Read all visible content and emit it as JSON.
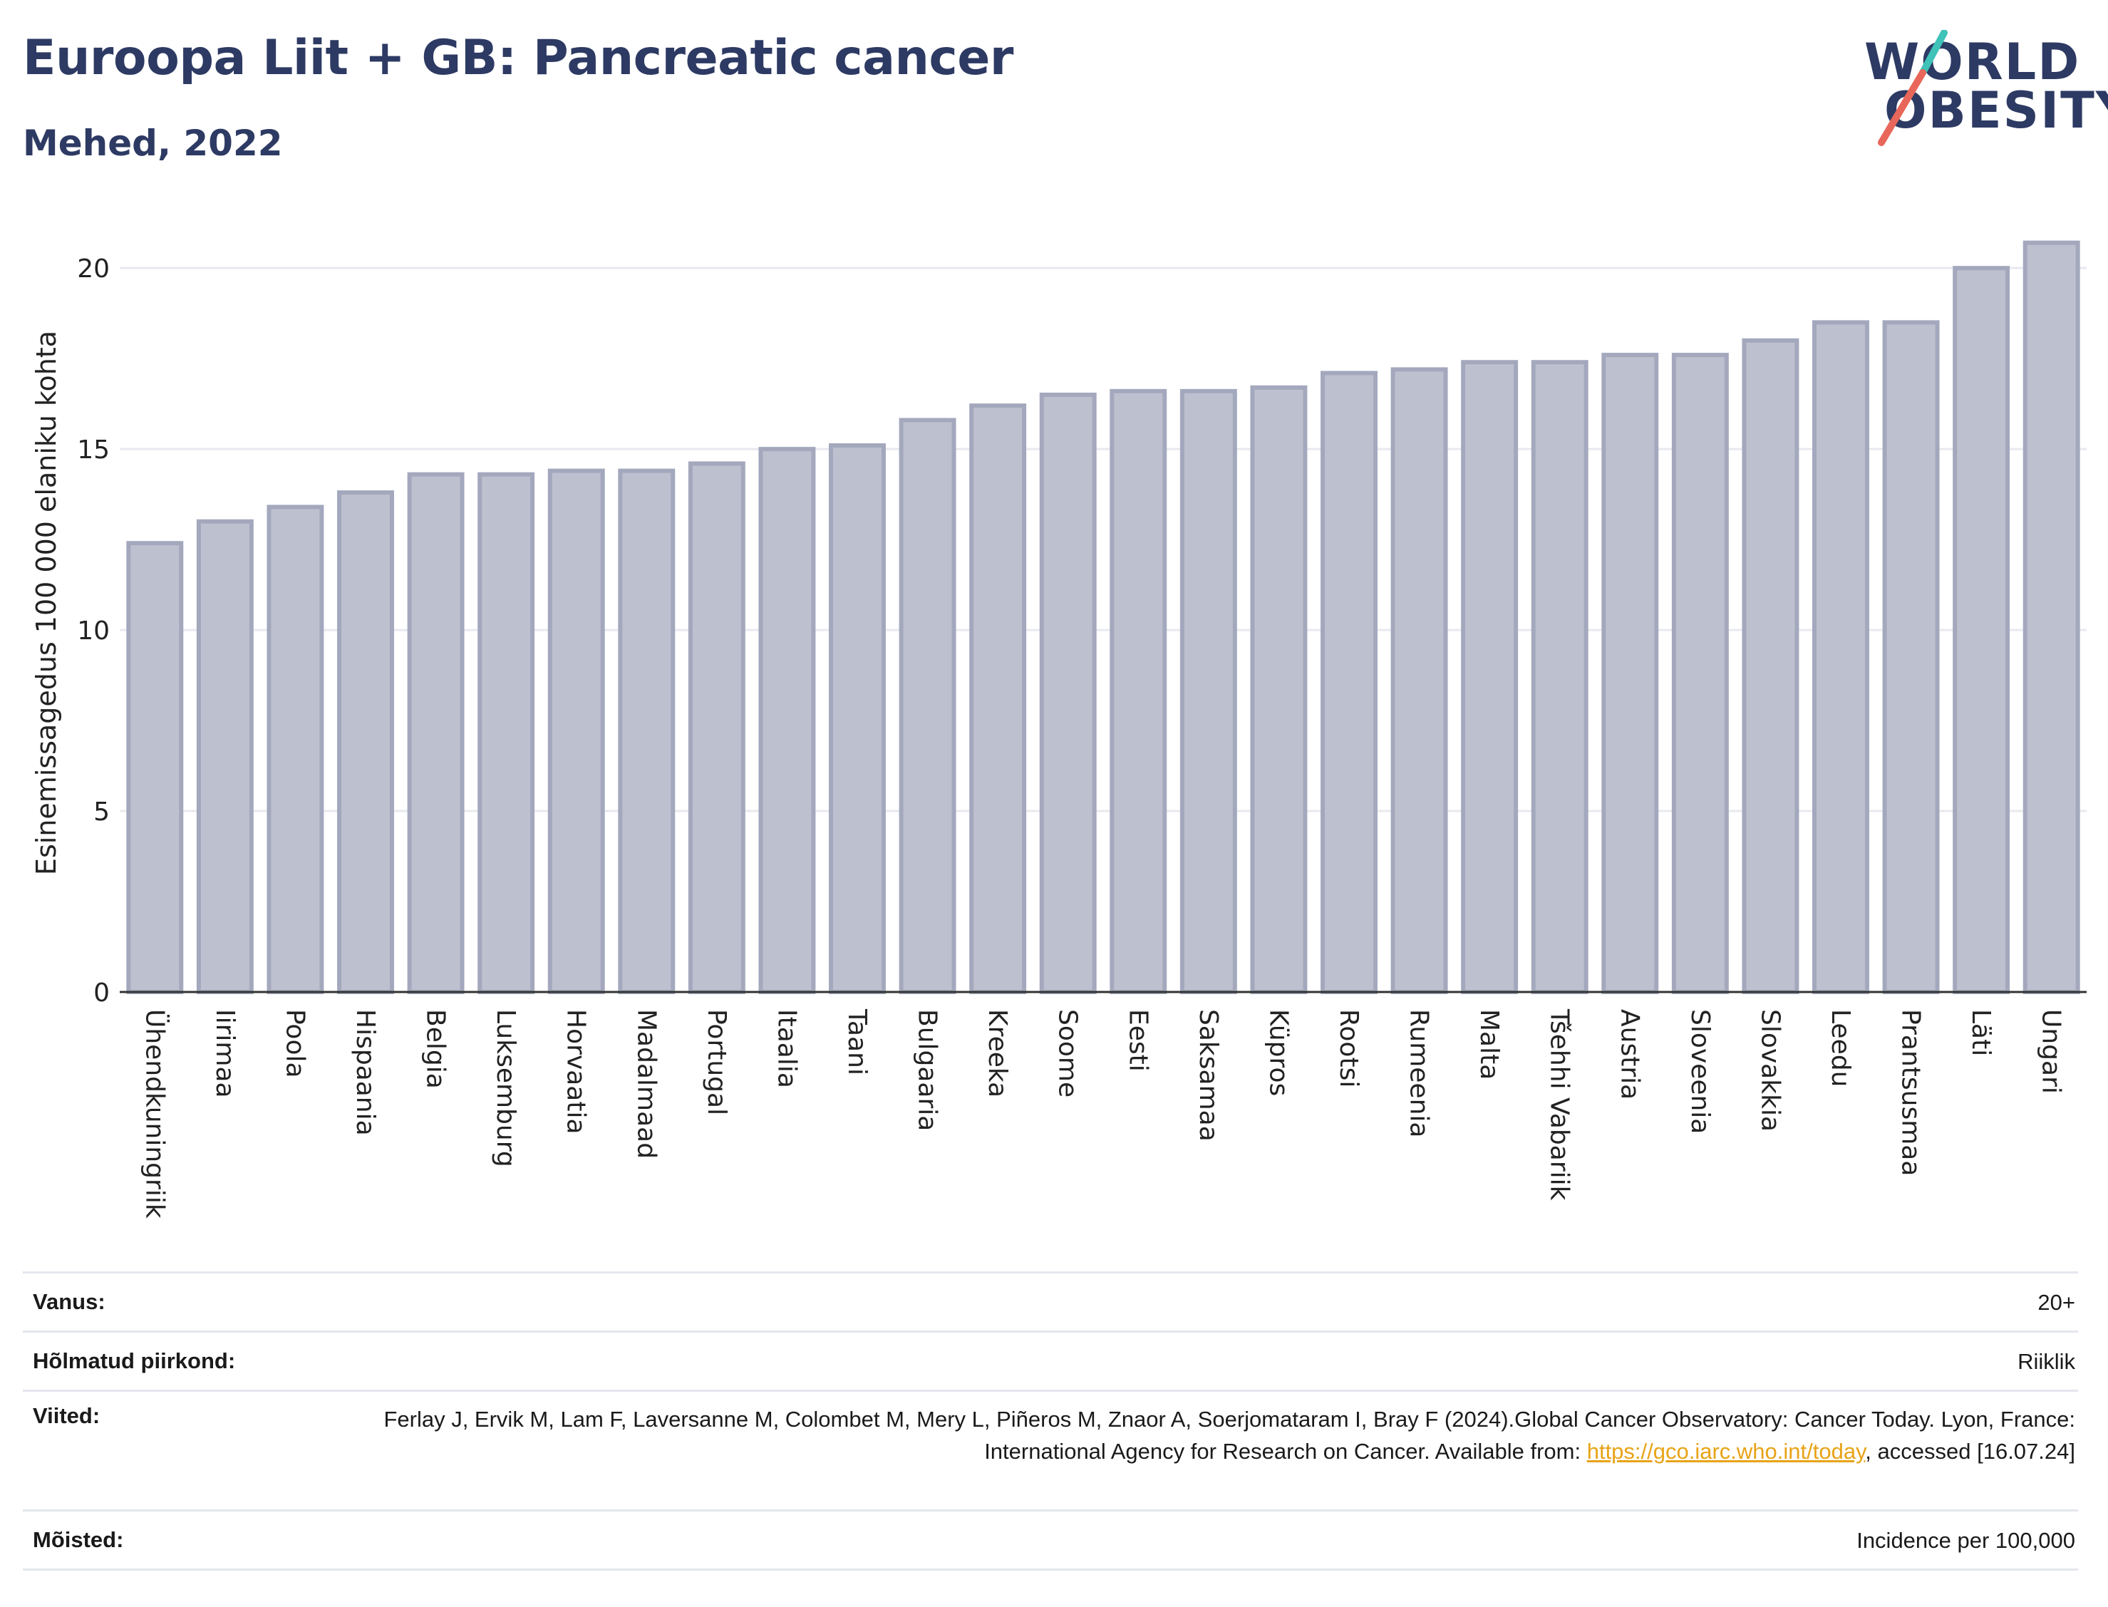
{
  "title": "Euroopa Liit + GB: Pancreatic cancer",
  "subtitle": "Mehed, 2022",
  "logo": {
    "line1": "WORLD",
    "line2": "OBESITY"
  },
  "colors": {
    "bar_fill": "#bdc0ce",
    "bar_stroke": "#a3a8bd",
    "title": "#2d3a63",
    "grid": "#e8e9ef",
    "link": "#e8a317",
    "logo_teal": "#3fc2b8",
    "logo_coral": "#e8675a"
  },
  "chart_data": {
    "type": "bar",
    "ylabel": "Esinemissagedus 100 000 elaniku kohta",
    "ylim": [
      0,
      21.5
    ],
    "yticks": [
      0,
      5,
      10,
      15,
      20
    ],
    "grid": true,
    "categories": [
      "Ühendkuningriik",
      "Iirimaa",
      "Poola",
      "Hispaania",
      "Belgia",
      "Luksemburg",
      "Horvaatia",
      "Madalmaad",
      "Portugal",
      "Itaalia",
      "Taani",
      "Bulgaaria",
      "Kreeka",
      "Soome",
      "Eesti",
      "Saksamaa",
      "Küpros",
      "Rootsi",
      "Rumeenia",
      "Malta",
      "Tšehhi Vabariik",
      "Austria",
      "Sloveenia",
      "Slovakkia",
      "Leedu",
      "Prantsusmaa",
      "Läti",
      "Ungari"
    ],
    "values": [
      12.4,
      13.0,
      13.4,
      13.8,
      14.3,
      14.3,
      14.4,
      14.4,
      14.6,
      15.0,
      15.1,
      15.8,
      16.2,
      16.5,
      16.6,
      16.6,
      16.7,
      17.1,
      17.2,
      17.4,
      17.4,
      17.6,
      17.6,
      18.0,
      18.5,
      18.5,
      20.0,
      20.7
    ]
  },
  "info": {
    "age_label": "Vanus:",
    "age_value": "20+",
    "region_label": "Hõlmatud piirkond:",
    "region_value": "Riiklik",
    "refs_label": "Viited:",
    "refs_text_1": "Ferlay J, Ervik M, Lam F, Laversanne M, Colombet M, Mery L, Piñeros M, Znaor A, Soerjomataram I, Bray F (2024).Global Cancer Observatory: Cancer Today. Lyon, France: International Agency for Research on Cancer. Available from: ",
    "refs_link": "https://gco.iarc.who.int/today",
    "refs_text_2": ", accessed [16.07.24]",
    "defs_label": "Mõisted:",
    "defs_value": "Incidence per 100,000"
  }
}
